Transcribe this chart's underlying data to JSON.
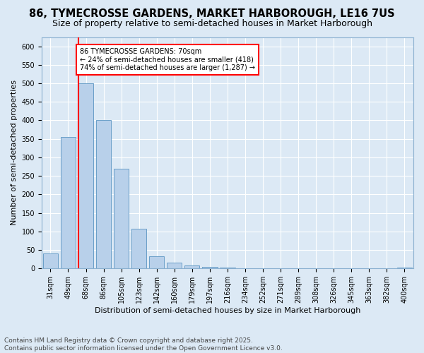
{
  "title1": "86, TYMECROSSE GARDENS, MARKET HARBOROUGH, LE16 7US",
  "title2": "Size of property relative to semi-detached houses in Market Harborough",
  "xlabel": "Distribution of semi-detached houses by size in Market Harborough",
  "ylabel": "Number of semi-detached properties",
  "categories": [
    "31sqm",
    "49sqm",
    "68sqm",
    "86sqm",
    "105sqm",
    "123sqm",
    "142sqm",
    "160sqm",
    "179sqm",
    "197sqm",
    "216sqm",
    "234sqm",
    "252sqm",
    "271sqm",
    "289sqm",
    "308sqm",
    "326sqm",
    "345sqm",
    "363sqm",
    "382sqm",
    "400sqm"
  ],
  "values": [
    40,
    355,
    500,
    400,
    270,
    108,
    32,
    15,
    8,
    5,
    2,
    0,
    0,
    0,
    0,
    0,
    0,
    0,
    0,
    0,
    2
  ],
  "bar_color": "#b8d0ea",
  "bar_edge_color": "#6a9fc8",
  "annotation_text": "86 TYMECROSSE GARDENS: 70sqm\n← 24% of semi-detached houses are smaller (418)\n74% of semi-detached houses are larger (1,287) →",
  "footnote1": "Contains HM Land Registry data © Crown copyright and database right 2025.",
  "footnote2": "Contains public sector information licensed under the Open Government Licence v3.0.",
  "ylim": [
    0,
    625
  ],
  "yticks": [
    0,
    50,
    100,
    150,
    200,
    250,
    300,
    350,
    400,
    450,
    500,
    550,
    600
  ],
  "bg_color": "#dce9f5",
  "grid_color": "#ffffff",
  "title1_fontsize": 10.5,
  "title2_fontsize": 9,
  "axis_label_fontsize": 8,
  "tick_fontsize": 7,
  "footnote_fontsize": 6.5
}
